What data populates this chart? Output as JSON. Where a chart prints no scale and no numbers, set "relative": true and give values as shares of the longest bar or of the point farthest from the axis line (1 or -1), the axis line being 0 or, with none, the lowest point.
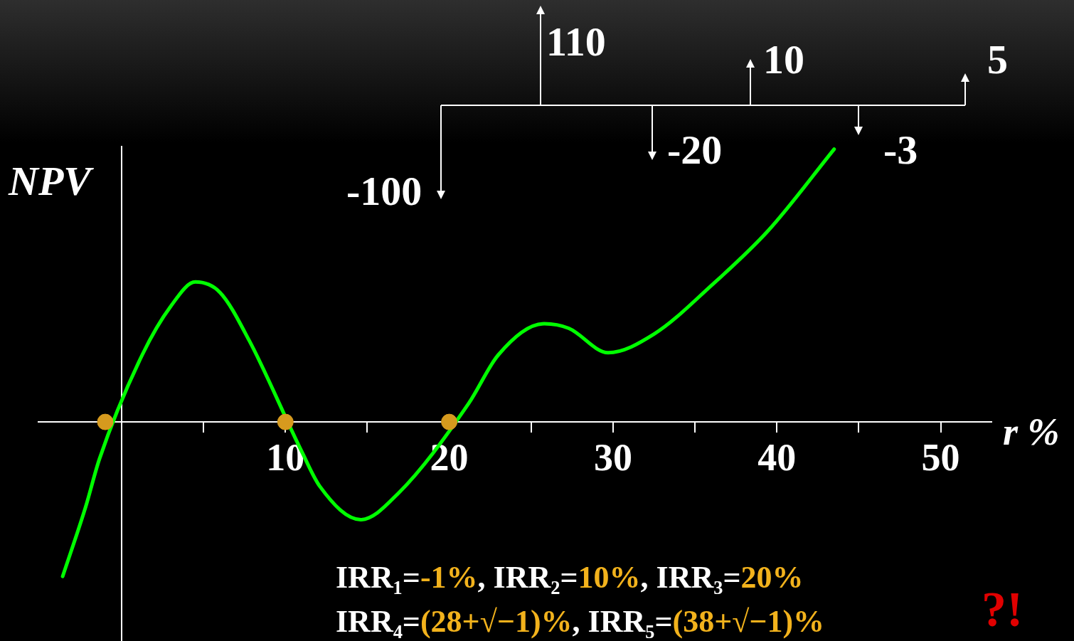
{
  "chart_data": {
    "type": "line",
    "xlabel": "r %",
    "ylabel": "NPV",
    "relative": true,
    "xlim": [
      -5.08,
      53.1
    ],
    "xticks": [
      {
        "value": 5,
        "label": null
      },
      10,
      {
        "value": 15,
        "label": null
      },
      20,
      {
        "value": 25,
        "label": null
      },
      30,
      {
        "value": 35,
        "label": null
      },
      40,
      {
        "value": 45,
        "label": null
      },
      50
    ],
    "grid": false,
    "legend": false,
    "marker": "none",
    "line_style": "solid",
    "series": [
      {
        "type": "line",
        "color": "#00ff00",
        "x": [
          -3.6,
          -2.2,
          -1.35,
          1.26,
          3.0,
          4.5,
          6.0,
          7.8,
          11.0,
          12.1,
          14.6,
          16.9,
          21.2,
          23.0,
          25.8,
          27.3,
          29.7,
          32.5,
          36.0,
          39.5,
          43.5
        ],
        "values": [
          -0.566,
          -0.312,
          -0.135,
          0.246,
          0.424,
          0.513,
          0.475,
          0.297,
          -0.109,
          -0.236,
          -0.358,
          -0.261,
          0.069,
          0.246,
          0.36,
          0.343,
          0.254,
          0.322,
          0.5,
          0.703,
          1
        ]
      },
      {
        "type": "scatter",
        "color": "#d69a1e",
        "marker": "circle",
        "x": [
          -1,
          10,
          20
        ],
        "values": [
          0,
          0,
          0
        ]
      }
    ],
    "annotations": [
      "-100",
      "110",
      "-20",
      "10",
      "-3",
      "5",
      "IRR₁=-1%, IRR₂=10%, IRR₃=20%",
      "IRR₄=(28+√−1)%, IRR₅=(38+√−1)%",
      "?!"
    ]
  }
}
